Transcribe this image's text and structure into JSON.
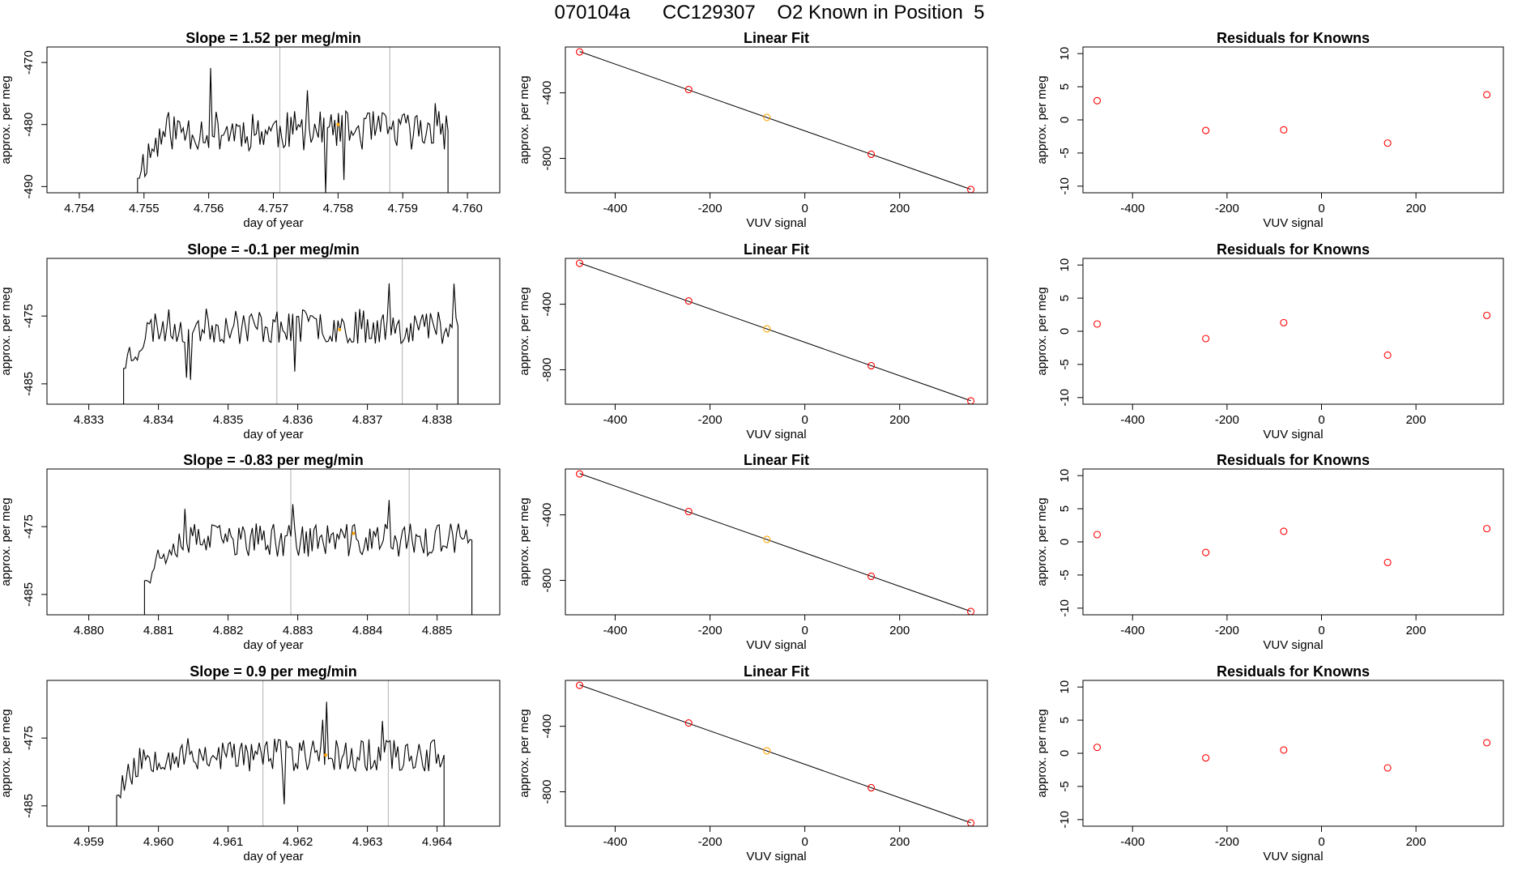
{
  "header": {
    "title": "070104a      CC129307    O2 Known in Position  5"
  },
  "colors": {
    "line": "#000000",
    "marker": "#ff0000",
    "highlight": "#ffa500",
    "vline": "#bebebe"
  },
  "chart_data": [
    {
      "type": "line",
      "row": 0,
      "panel": "timeseries",
      "title": "Slope =  1.52  per meg/min",
      "xlabel": "day of year",
      "ylabel": "approx. per meg",
      "xlim": [
        4.7535,
        4.7605
      ],
      "ylim": [
        -491,
        -467.5
      ],
      "xticks": [
        4.754,
        4.755,
        4.756,
        4.757,
        4.758,
        4.759,
        4.76
      ],
      "xtick_labels": [
        "4.754",
        "4.755",
        "4.756",
        "4.757",
        "4.758",
        "4.759",
        "4.760"
      ],
      "yticks": [
        -490,
        -480,
        -470
      ],
      "ytick_labels": [
        "-490",
        "-480",
        "-470"
      ],
      "start_x": 4.7549,
      "end_x": 4.7597,
      "baseline": -491,
      "mean": -481,
      "amp": 3.2,
      "seed": 11,
      "vlines": [
        4.7571,
        4.7588
      ],
      "highlight_point": {
        "x": 4.758,
        "y": -480
      }
    },
    {
      "type": "line",
      "row": 0,
      "panel": "linear_fit",
      "title": "Linear Fit",
      "xlabel": "VUV signal",
      "ylabel": "approx. per meg",
      "xlim": [
        -505,
        385
      ],
      "ylim": [
        -1010,
        -120
      ],
      "xticks": [
        -400,
        -200,
        0,
        200
      ],
      "xtick_labels": [
        "-400",
        "-200",
        "0",
        "200"
      ],
      "yticks": [
        -800,
        -400
      ],
      "ytick_labels": [
        "-800",
        "-400"
      ],
      "x": [
        -475,
        -245,
        -80,
        140,
        350
      ],
      "y": [
        -150,
        -380,
        -550,
        -775,
        -990
      ],
      "highlight_index": 2
    },
    {
      "type": "scatter",
      "row": 0,
      "panel": "residuals",
      "title": "Residuals for Knowns",
      "xlabel": "VUV signal",
      "ylabel": "approx. per meg",
      "xlim": [
        -505,
        385
      ],
      "ylim": [
        -11,
        11
      ],
      "xticks": [
        -400,
        -200,
        0,
        200
      ],
      "xtick_labels": [
        "-400",
        "-200",
        "0",
        "200"
      ],
      "yticks": [
        -10,
        -5,
        0,
        5,
        10
      ],
      "ytick_labels": [
        "-10",
        "-5",
        "0",
        "5",
        "10"
      ],
      "x": [
        -475,
        -245,
        -80,
        140,
        350
      ],
      "y": [
        2.9,
        -1.6,
        -1.5,
        -3.5,
        3.8
      ]
    },
    {
      "type": "line",
      "row": 1,
      "panel": "timeseries",
      "title": "Slope =  -0.1  per meg/min",
      "xlabel": "day of year",
      "ylabel": "approx. per meg",
      "xlim": [
        4.8324,
        4.8389
      ],
      "ylim": [
        -488,
        -466.5
      ],
      "xticks": [
        4.833,
        4.834,
        4.835,
        4.836,
        4.837,
        4.838
      ],
      "xtick_labels": [
        "4.833",
        "4.834",
        "4.835",
        "4.836",
        "4.837",
        "4.838"
      ],
      "yticks": [
        -485,
        -475
      ],
      "ytick_labels": [
        "-485",
        "-475"
      ],
      "start_x": 4.8335,
      "end_x": 4.8383,
      "baseline": -488,
      "mean": -476.5,
      "amp": 2.6,
      "seed": 23,
      "vlines": [
        4.8357,
        4.8375
      ],
      "highlight_point": {
        "x": 4.8366,
        "y": -477
      }
    },
    {
      "type": "line",
      "row": 1,
      "panel": "linear_fit",
      "title": "Linear Fit",
      "xlabel": "VUV signal",
      "ylabel": "approx. per meg",
      "xlim": [
        -505,
        385
      ],
      "ylim": [
        -1010,
        -120
      ],
      "xticks": [
        -400,
        -200,
        0,
        200
      ],
      "xtick_labels": [
        "-400",
        "-200",
        "0",
        "200"
      ],
      "yticks": [
        -800,
        -400
      ],
      "ytick_labels": [
        "-800",
        "-400"
      ],
      "x": [
        -475,
        -245,
        -80,
        140,
        350
      ],
      "y": [
        -150,
        -380,
        -550,
        -775,
        -990
      ],
      "highlight_index": 2
    },
    {
      "type": "scatter",
      "row": 1,
      "panel": "residuals",
      "title": "Residuals for Knowns",
      "xlabel": "VUV signal",
      "ylabel": "approx. per meg",
      "xlim": [
        -505,
        385
      ],
      "ylim": [
        -11,
        11
      ],
      "xticks": [
        -400,
        -200,
        0,
        200
      ],
      "xtick_labels": [
        "-400",
        "-200",
        "0",
        "200"
      ],
      "yticks": [
        -10,
        -5,
        0,
        5,
        10
      ],
      "ytick_labels": [
        "-10",
        "-5",
        "0",
        "5",
        "10"
      ],
      "x": [
        -475,
        -245,
        -80,
        140,
        350
      ],
      "y": [
        1.1,
        -1.1,
        1.3,
        -3.6,
        2.4
      ]
    },
    {
      "type": "line",
      "row": 2,
      "panel": "timeseries",
      "title": "Slope =  -0.83  per meg/min",
      "xlabel": "day of year",
      "ylabel": "approx. per meg",
      "xlim": [
        4.8794,
        4.8859
      ],
      "ylim": [
        -488,
        -466.5
      ],
      "xticks": [
        4.88,
        4.881,
        4.882,
        4.883,
        4.884,
        4.885
      ],
      "xtick_labels": [
        "4.880",
        "4.881",
        "4.882",
        "4.883",
        "4.884",
        "4.885"
      ],
      "yticks": [
        -485,
        -475
      ],
      "ytick_labels": [
        "-485",
        "-475"
      ],
      "start_x": 4.8808,
      "end_x": 4.8855,
      "baseline": -488,
      "mean": -477,
      "amp": 2.5,
      "seed": 37,
      "vlines": [
        4.8829,
        4.8846
      ],
      "highlight_point": {
        "x": 4.8838,
        "y": -476
      }
    },
    {
      "type": "line",
      "row": 2,
      "panel": "linear_fit",
      "title": "Linear Fit",
      "xlabel": "VUV signal",
      "ylabel": "approx. per meg",
      "xlim": [
        -505,
        385
      ],
      "ylim": [
        -1010,
        -120
      ],
      "xticks": [
        -400,
        -200,
        0,
        200
      ],
      "xtick_labels": [
        "-400",
        "-200",
        "0",
        "200"
      ],
      "yticks": [
        -800,
        -400
      ],
      "ytick_labels": [
        "-800",
        "-400"
      ],
      "x": [
        -475,
        -245,
        -80,
        140,
        350
      ],
      "y": [
        -150,
        -380,
        -550,
        -775,
        -990
      ],
      "highlight_index": 2
    },
    {
      "type": "scatter",
      "row": 2,
      "panel": "residuals",
      "title": "Residuals for Knowns",
      "xlabel": "VUV signal",
      "ylabel": "approx. per meg",
      "xlim": [
        -505,
        385
      ],
      "ylim": [
        -11,
        11
      ],
      "xticks": [
        -400,
        -200,
        0,
        200
      ],
      "xtick_labels": [
        "-400",
        "-200",
        "0",
        "200"
      ],
      "yticks": [
        -10,
        -5,
        0,
        5,
        10
      ],
      "ytick_labels": [
        "-10",
        "-5",
        "0",
        "5",
        "10"
      ],
      "x": [
        -475,
        -245,
        -80,
        140,
        350
      ],
      "y": [
        1.1,
        -1.6,
        1.6,
        -3.1,
        2.0
      ]
    },
    {
      "type": "line",
      "row": 3,
      "panel": "timeseries",
      "title": "Slope =  0.9  per meg/min",
      "xlabel": "day of year",
      "ylabel": "approx. per meg",
      "xlim": [
        4.9584,
        4.9649
      ],
      "ylim": [
        -488,
        -466.5
      ],
      "xticks": [
        4.959,
        4.96,
        4.961,
        4.962,
        4.963,
        4.964
      ],
      "xtick_labels": [
        "4.959",
        "4.960",
        "4.961",
        "4.962",
        "4.963",
        "4.964"
      ],
      "yticks": [
        -485,
        -475
      ],
      "ytick_labels": [
        "-485",
        "-475"
      ],
      "start_x": 4.9594,
      "end_x": 4.9641,
      "baseline": -488,
      "mean": -477.5,
      "amp": 2.5,
      "seed": 53,
      "vlines": [
        4.9615,
        4.9633
      ],
      "highlight_point": {
        "x": 4.9624,
        "y": -477.5
      }
    },
    {
      "type": "line",
      "row": 3,
      "panel": "linear_fit",
      "title": "Linear Fit",
      "xlabel": "VUV signal",
      "ylabel": "approx. per meg",
      "xlim": [
        -505,
        385
      ],
      "ylim": [
        -1010,
        -120
      ],
      "xticks": [
        -400,
        -200,
        0,
        200
      ],
      "xtick_labels": [
        "-400",
        "-200",
        "0",
        "200"
      ],
      "yticks": [
        -800,
        -400
      ],
      "ytick_labels": [
        "-800",
        "-400"
      ],
      "x": [
        -475,
        -245,
        -80,
        140,
        350
      ],
      "y": [
        -150,
        -380,
        -550,
        -775,
        -990
      ],
      "highlight_index": 2
    },
    {
      "type": "scatter",
      "row": 3,
      "panel": "residuals",
      "title": "Residuals for Knowns",
      "xlabel": "VUV signal",
      "ylabel": "approx. per meg",
      "xlim": [
        -505,
        385
      ],
      "ylim": [
        -11,
        11
      ],
      "xticks": [
        -400,
        -200,
        0,
        200
      ],
      "xtick_labels": [
        "-400",
        "-200",
        "0",
        "200"
      ],
      "yticks": [
        -10,
        -5,
        0,
        5,
        10
      ],
      "ytick_labels": [
        "-10",
        "-5",
        "0",
        "5",
        "10"
      ],
      "x": [
        -475,
        -245,
        -80,
        140,
        350
      ],
      "y": [
        0.9,
        -0.7,
        0.5,
        -2.2,
        1.6
      ]
    }
  ]
}
